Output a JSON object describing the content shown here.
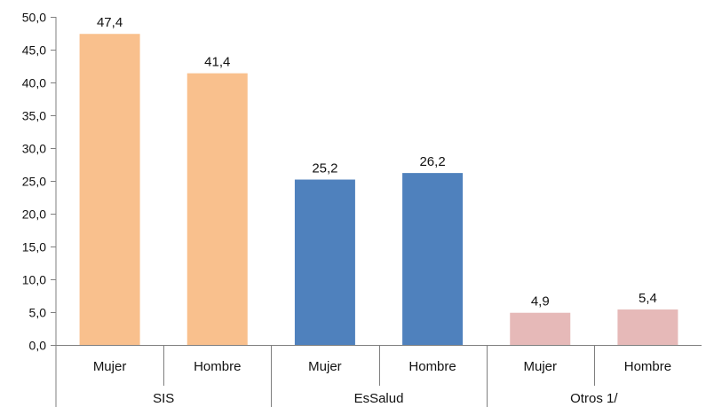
{
  "chart_data": {
    "type": "bar",
    "groups": [
      {
        "label": "SIS",
        "categories": [
          "Mujer",
          "Hombre"
        ],
        "values": [
          47.4,
          41.4
        ],
        "value_labels": [
          "47,4",
          "41,4"
        ],
        "color": "#F9C08D"
      },
      {
        "label": "EsSalud",
        "categories": [
          "Mujer",
          "Hombre"
        ],
        "values": [
          25.2,
          26.2
        ],
        "value_labels": [
          "25,2",
          "26,2"
        ],
        "color": "#4F81BD"
      },
      {
        "label": "Otros 1/",
        "categories": [
          "Mujer",
          "Hombre"
        ],
        "values": [
          4.9,
          5.4
        ],
        "value_labels": [
          "4,9",
          "5,4"
        ],
        "color": "#E6B9B8"
      }
    ],
    "ylim": [
      0,
      50
    ],
    "yticks": [
      0,
      5,
      10,
      15,
      20,
      25,
      30,
      35,
      40,
      45,
      50
    ],
    "ytick_labels": [
      "0,0",
      "5,0",
      "10,0",
      "15,0",
      "20,0",
      "25,0",
      "30,0",
      "35,0",
      "40,0",
      "45,0",
      "50,0"
    ],
    "grid": false,
    "legend": "none"
  }
}
